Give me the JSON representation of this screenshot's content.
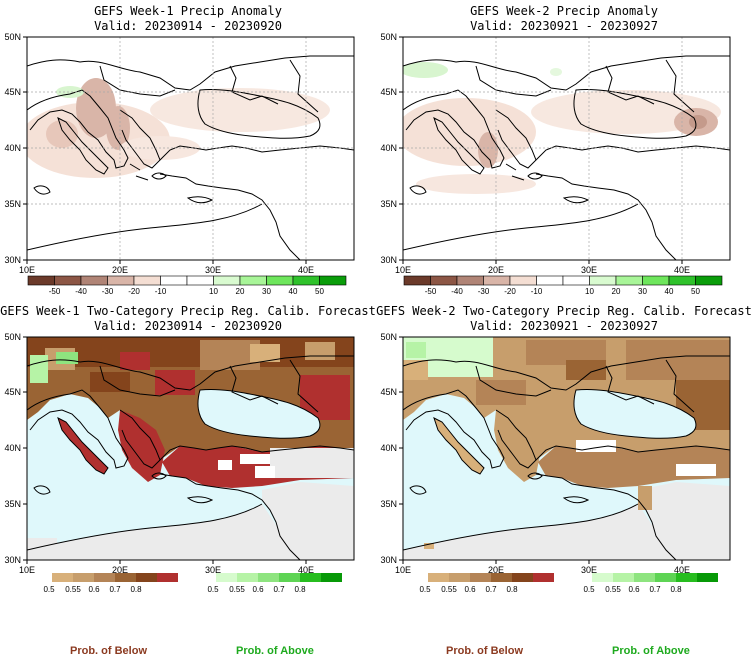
{
  "colors": {
    "land": "#ffffff",
    "sea_forecast": "#dff8fb",
    "no_skill": "#ebebeb",
    "coast": "#000000",
    "below_text": "#8b3a20",
    "above_text": "#1eaa1e"
  },
  "map_axes": {
    "lon_labels": [
      "10E",
      "20E",
      "30E",
      "40E"
    ],
    "lat_labels": [
      "50N",
      "45N",
      "40N",
      "35N",
      "30N"
    ]
  },
  "panels": [
    {
      "id": "w1-anom",
      "title": "GEFS Week-1 Precip Anomaly",
      "valid": "Valid: 20230914 - 20230920",
      "kind": "anomaly"
    },
    {
      "id": "w2-anom",
      "title": "GEFS Week-2 Precip Anomaly",
      "valid": "Valid: 20230921 - 20230927",
      "kind": "anomaly"
    },
    {
      "id": "w1-prob",
      "title": "GEFS Week-1 Two-Category Precip Reg. Calib. Forecast",
      "valid": "Valid: 20230914 - 20230920",
      "kind": "prob"
    },
    {
      "id": "w2-prob",
      "title": "GEFS Week-2 Two-Category Precip Reg. Calib. Forecast",
      "valid": "Valid: 20230921 - 20230927",
      "kind": "prob"
    }
  ],
  "anomaly_colorbar": {
    "colors": [
      "#6b3a2a",
      "#8c5645",
      "#b08476",
      "#d9b5a8",
      "#f4ded3",
      "#ffffff",
      "#ffffff",
      "#d9fbd0",
      "#a8f598",
      "#6ee65c",
      "#2fc22b",
      "#0a9d0a"
    ],
    "labels": [
      "-50",
      "-40",
      "-30",
      "-20",
      "-10",
      "10",
      "20",
      "30",
      "40",
      "50"
    ]
  },
  "prob_colorbars": {
    "below": {
      "colors": [
        "#d8b07a",
        "#c79e6c",
        "#b48457",
        "#9a6434",
        "#84441c",
        "#b0302f"
      ],
      "labels": [
        "0.5",
        "0.55",
        "0.6",
        "0.7",
        "0.8"
      ]
    },
    "above": {
      "colors": [
        "#d6fbcd",
        "#b6f3a6",
        "#8ee47f",
        "#5ed454",
        "#27bd1f",
        "#079907"
      ],
      "labels": [
        "0.5",
        "0.55",
        "0.6",
        "0.7",
        "0.8"
      ]
    }
  },
  "legend_titles": {
    "below": "Prob. of Below",
    "above": "Prob. of Above"
  }
}
